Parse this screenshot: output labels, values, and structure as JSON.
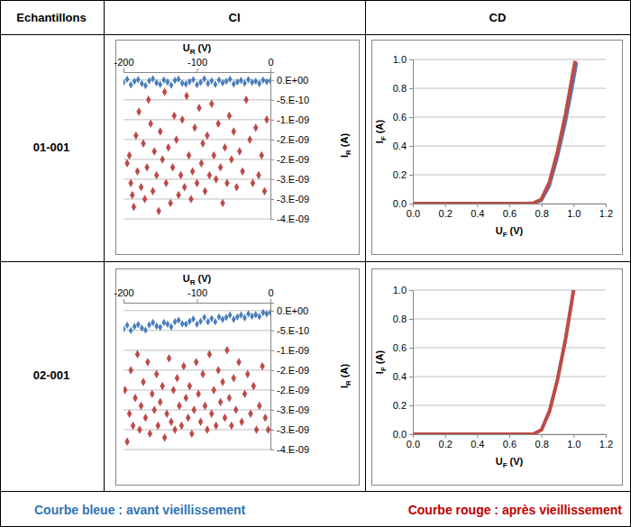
{
  "table": {
    "header": [
      "Echantillons",
      "CI",
      "CD"
    ],
    "rows": [
      "01-001",
      "02-001"
    ],
    "legend": [
      {
        "text": "Courbe bleue : avant vieillissement",
        "color": "#2e74b5"
      },
      {
        "text": "Courbe rouge : après vieillissement",
        "color": "#c00000"
      }
    ]
  },
  "chart_data": [
    {
      "type": "scatter",
      "xlabel": "UR (V)",
      "ylabel": "IR (A)",
      "grid": true,
      "xlim": [
        -200,
        0
      ],
      "xticks": [
        -200,
        -100,
        0
      ],
      "ylim": [
        -3.5e-09,
        2e-10
      ],
      "yticks": [
        {
          "value": 0,
          "label": "0.E+00"
        },
        {
          "value": -5e-10,
          "label": "-5.E-10"
        },
        {
          "value": -1e-09,
          "label": "-1.E-09"
        },
        {
          "value": -1.5e-09,
          "label": "-2.E-09"
        },
        {
          "value": -2e-09,
          "label": "-2.E-09"
        },
        {
          "value": -2.5e-09,
          "label": "-3.E-09"
        },
        {
          "value": -3e-09,
          "label": "-3.E-09"
        },
        {
          "value": -3.5e-09,
          "label": "-4.E-09"
        }
      ],
      "series": [
        {
          "color": "#4a7ebb",
          "marker": "diamond",
          "x": [
            -200,
            -195,
            -190,
            -185,
            -180,
            -175,
            -170,
            -165,
            -160,
            -155,
            -150,
            -145,
            -140,
            -135,
            -130,
            -125,
            -120,
            -115,
            -110,
            -105,
            -100,
            -95,
            -90,
            -85,
            -80,
            -75,
            -70,
            -65,
            -60,
            -55,
            -50,
            -45,
            -40,
            -35,
            -30,
            -25,
            -20,
            -15,
            -10,
            -5,
            0
          ],
          "values": [
            -6e-11,
            2e-11,
            -1.2e-10,
            -3e-11,
            1e-11,
            -9e-11,
            -1.4e-10,
            -2e-11,
            3e-11,
            -7e-11,
            -1.1e-10,
            0,
            -5e-11,
            -1.3e-10,
            -1e-11,
            2e-11,
            -8e-11,
            -1e-10,
            -4e-11,
            1e-11,
            -1.2e-10,
            -6e-11,
            3e-11,
            -9e-11,
            -2e-11,
            -1.1e-10,
            0,
            -7e-11,
            -3e-11,
            2e-11,
            -1e-10,
            -5e-11,
            -1e-11,
            -8e-11,
            1e-11,
            -6e-11,
            -3e-11,
            -9e-11,
            0,
            -4e-11,
            -2e-11
          ]
        },
        {
          "color": "#be4b48",
          "marker": "diamond",
          "x": [
            -195,
            -192,
            -190,
            -188,
            -186,
            -183,
            -181,
            -179,
            -176,
            -173,
            -171,
            -168,
            -166,
            -163,
            -160,
            -158,
            -155,
            -152,
            -150,
            -147,
            -144,
            -142,
            -139,
            -136,
            -133,
            -131,
            -128,
            -125,
            -122,
            -120,
            -117,
            -114,
            -111,
            -108,
            -106,
            -103,
            -100,
            -97,
            -94,
            -92,
            -89,
            -86,
            -83,
            -80,
            -77,
            -74,
            -71,
            -68,
            -65,
            -62,
            -59,
            -56,
            -53,
            -50,
            -46,
            -42,
            -38,
            -33,
            -28,
            -24,
            -20,
            -16,
            -12,
            -8,
            -5
          ],
          "values": [
            -2.1e-09,
            -1.9e-09,
            -2.6e-09,
            -2.9e-09,
            -3.2e-09,
            -1.4e-09,
            -2.3e-09,
            -8e-10,
            -2.7e-09,
            -1.6e-09,
            -3e-09,
            -2.2e-09,
            -5e-10,
            -1.1e-09,
            -2.8e-09,
            -1.8e-09,
            -2.4e-09,
            -3.3e-09,
            -1.3e-09,
            -2e-09,
            -3e-10,
            -2.6e-09,
            -1.7e-09,
            -3.1e-09,
            -2.2e-09,
            -9e-10,
            -1.5e-09,
            -2.9e-09,
            -2.4e-09,
            -1e-09,
            -2.7e-09,
            -4e-10,
            -1.9e-09,
            -3e-09,
            -2.3e-09,
            -1.2e-09,
            -2.6e-09,
            -7e-10,
            -2.1e-09,
            -1.6e-09,
            -2.8e-09,
            -1.4e-09,
            -2.4e-09,
            -6e-10,
            -1.9e-09,
            -2.5e-09,
            -1.1e-09,
            -2.2e-09,
            -3.1e-09,
            -1.7e-09,
            -2.6e-09,
            -9e-10,
            -2e-09,
            -1.3e-09,
            -2.7e-09,
            -1.8e-09,
            -2.3e-09,
            -5e-10,
            -1.5e-09,
            -2.6e-09,
            -1.2e-09,
            -2.4e-09,
            -1.9e-09,
            -2.8e-09,
            -1e-09
          ]
        }
      ]
    },
    {
      "type": "line",
      "xlabel": "UF (V)",
      "ylabel": "IF (A)",
      "grid": true,
      "xlim": [
        0,
        1.2
      ],
      "xticks": [
        {
          "value": 0,
          "label": "0.0"
        },
        0.2,
        0.4,
        0.6,
        0.8,
        {
          "value": 1,
          "label": "1.0"
        },
        1.2
      ],
      "ylim": [
        0,
        1
      ],
      "yticks": [
        {
          "value": 0,
          "label": "0.0"
        },
        0.2,
        0.4,
        0.6,
        0.8,
        {
          "value": 1,
          "label": "1.0"
        }
      ],
      "series": [
        {
          "color": "#4a7ebb",
          "line_style": "solid",
          "x": [
            0,
            0.1,
            0.2,
            0.3,
            0.4,
            0.5,
            0.6,
            0.7,
            0.75,
            0.8,
            0.85,
            0.9,
            0.95,
            1.0,
            1.02
          ],
          "values": [
            0,
            0,
            0,
            0,
            0,
            0,
            0,
            0,
            0.002,
            0.02,
            0.12,
            0.32,
            0.56,
            0.85,
            0.98
          ]
        },
        {
          "color": "#be4b48",
          "line_style": "solid",
          "x": [
            0,
            0.1,
            0.2,
            0.3,
            0.4,
            0.5,
            0.6,
            0.7,
            0.75,
            0.8,
            0.85,
            0.9,
            0.95,
            1.0,
            1.01
          ],
          "values": [
            0,
            0,
            0,
            0,
            0,
            0,
            0,
            0,
            0.003,
            0.03,
            0.15,
            0.36,
            0.62,
            0.93,
            0.99
          ]
        }
      ]
    },
    {
      "type": "scatter",
      "xlabel": "UR (V)",
      "ylabel": "IR (A)",
      "grid": true,
      "xlim": [
        -200,
        0
      ],
      "xticks": [
        -200,
        -100,
        0
      ],
      "ylim": [
        -3.5e-09,
        2e-10
      ],
      "yticks": [
        {
          "value": 0,
          "label": "0.E+00"
        },
        {
          "value": -5e-10,
          "label": "-5.E-10"
        },
        {
          "value": -1e-09,
          "label": "-1.E-09"
        },
        {
          "value": -1.5e-09,
          "label": "-2.E-09"
        },
        {
          "value": -2e-09,
          "label": "-2.E-09"
        },
        {
          "value": -2.5e-09,
          "label": "-3.E-09"
        },
        {
          "value": -3e-09,
          "label": "-3.E-09"
        },
        {
          "value": -3.5e-09,
          "label": "-4.E-09"
        }
      ],
      "series": [
        {
          "color": "#4a7ebb",
          "marker": "diamond",
          "x": [
            -200,
            -195,
            -190,
            -185,
            -180,
            -175,
            -170,
            -165,
            -160,
            -155,
            -150,
            -145,
            -140,
            -135,
            -130,
            -125,
            -120,
            -115,
            -110,
            -105,
            -100,
            -95,
            -90,
            -85,
            -80,
            -75,
            -70,
            -65,
            -60,
            -55,
            -50,
            -45,
            -40,
            -35,
            -30,
            -25,
            -20,
            -15,
            -10,
            -5,
            0
          ],
          "values": [
            -4.6e-10,
            -3.7e-10,
            -5e-10,
            -4e-10,
            -3.5e-10,
            -4.4e-10,
            -4.9e-10,
            -3.6e-10,
            -3e-10,
            -3.9e-10,
            -4.2e-10,
            -3e-10,
            -3.4e-10,
            -4.1e-10,
            -2.8e-10,
            -2.4e-10,
            -3.3e-10,
            -3.4e-10,
            -2.7e-10,
            -2.1e-10,
            -3.4e-10,
            -2.7e-10,
            -1.7e-10,
            -2.8e-10,
            -2e-10,
            -2.8e-10,
            -1.6e-10,
            -2.2e-10,
            -1.7e-10,
            -1.1e-10,
            -2.2e-10,
            -1.6e-10,
            -1.1e-10,
            -1.8e-10,
            -8e-11,
            -1.4e-10,
            -1e-10,
            -1.5e-10,
            -5e-11,
            -8e-11,
            -5e-11
          ]
        },
        {
          "color": "#be4b48",
          "marker": "diamond",
          "x": [
            -198,
            -195,
            -192,
            -190,
            -187,
            -184,
            -181,
            -178,
            -176,
            -173,
            -170,
            -167,
            -164,
            -161,
            -158,
            -155,
            -153,
            -150,
            -147,
            -144,
            -141,
            -138,
            -135,
            -132,
            -130,
            -127,
            -124,
            -121,
            -118,
            -115,
            -112,
            -110,
            -107,
            -104,
            -101,
            -98,
            -95,
            -92,
            -89,
            -86,
            -83,
            -80,
            -77,
            -74,
            -71,
            -68,
            -65,
            -62,
            -59,
            -56,
            -53,
            -50,
            -47,
            -43,
            -39,
            -35,
            -31,
            -27,
            -23,
            -19,
            -15,
            -11,
            -7,
            -3
          ],
          "values": [
            -2e-09,
            -3.3e-09,
            -2.6e-09,
            -1.5e-09,
            -2.9e-09,
            -2.2e-09,
            -1.1e-09,
            -3e-09,
            -2.4e-09,
            -1.8e-09,
            -2.7e-09,
            -1.3e-09,
            -3.1e-09,
            -2.1e-09,
            -2.5e-09,
            -1.6e-09,
            -2.9e-09,
            -2.3e-09,
            -1.9e-09,
            -3.2e-09,
            -2.6e-09,
            -1.2e-09,
            -2.8e-09,
            -2e-09,
            -3e-09,
            -1.7e-09,
            -2.4e-09,
            -2.9e-09,
            -1.4e-09,
            -2.2e-09,
            -2.7e-09,
            -1.9e-09,
            -3.1e-09,
            -2.5e-09,
            -1.3e-09,
            -2.1e-09,
            -2.8e-09,
            -1.6e-09,
            -2.4e-09,
            -3e-09,
            -1.1e-09,
            -2.6e-09,
            -2e-09,
            -2.9e-09,
            -1.5e-09,
            -2.3e-09,
            -1.8e-09,
            -2.7e-09,
            -1e-09,
            -2.2e-09,
            -2.9e-09,
            -1.7e-09,
            -2.5e-09,
            -1.3e-09,
            -2.8e-09,
            -2.1e-09,
            -1.6e-09,
            -2.6e-09,
            -1.9e-09,
            -3e-09,
            -2.4e-09,
            -1.4e-09,
            -2.7e-09,
            -3e-09
          ]
        }
      ]
    },
    {
      "type": "line",
      "xlabel": "UF (V)",
      "ylabel": "IF (A)",
      "grid": true,
      "xlim": [
        0,
        1.2
      ],
      "xticks": [
        {
          "value": 0,
          "label": "0.0"
        },
        0.2,
        0.4,
        0.6,
        0.8,
        {
          "value": 1,
          "label": "1.0"
        },
        1.2
      ],
      "ylim": [
        0,
        1
      ],
      "yticks": [
        {
          "value": 0,
          "label": "0.0"
        },
        0.2,
        0.4,
        0.6,
        0.8,
        {
          "value": 1,
          "label": "1.0"
        }
      ],
      "series": [
        {
          "color": "#4a7ebb",
          "line_style": "solid",
          "x": [
            0,
            0.1,
            0.2,
            0.3,
            0.4,
            0.5,
            0.6,
            0.7,
            0.75,
            0.8,
            0.85,
            0.9,
            0.95,
            1.0
          ],
          "values": [
            0,
            0,
            0,
            0,
            0,
            0,
            0,
            0,
            0.002,
            0.03,
            0.16,
            0.38,
            0.66,
            1.0
          ]
        },
        {
          "color": "#be4b48",
          "line_style": "solid",
          "x": [
            0,
            0.1,
            0.2,
            0.3,
            0.4,
            0.5,
            0.6,
            0.7,
            0.75,
            0.8,
            0.85,
            0.9,
            0.95,
            1.0
          ],
          "values": [
            0,
            0,
            0,
            0,
            0,
            0,
            0,
            0,
            0.002,
            0.03,
            0.16,
            0.38,
            0.66,
            1.0
          ]
        }
      ]
    }
  ]
}
